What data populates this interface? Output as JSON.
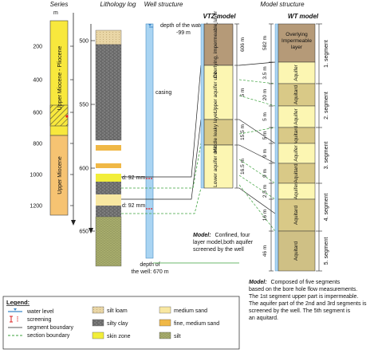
{
  "headers": {
    "series": "Series",
    "lithology": "Lithology log",
    "well": "Well structure",
    "model_structure": "Model structure",
    "vtz": "VTZ model",
    "wt": "WT model"
  },
  "series_axis": {
    "unit": "m",
    "ticks": [
      "200",
      "400",
      "600",
      "800",
      "1000",
      "1200"
    ],
    "upper_unit": "Upper Miocene - Pliocene",
    "lower_unit": "Upper Miocene"
  },
  "litho_axis": {
    "ticks": [
      "500",
      "550",
      "600",
      "650"
    ]
  },
  "well": {
    "water_level_label": "depth of the water level:",
    "water_level_value": "-99 m",
    "casing_label": "casing",
    "diam_1": "d: 92 mm",
    "diam_2": "d: 92 mm",
    "depth_label": "depth of",
    "depth_value": "the well: 670 m"
  },
  "vtz_layers": [
    {
      "label": "Overlying, impermeable layer",
      "thickness": "606 m"
    },
    {
      "label": "Upper aquifer unit",
      "thickness": "5 m"
    },
    {
      "label": "Middle leaky layer",
      "thickness": "15.5 m"
    },
    {
      "label": "Lower aquifer unit",
      "thickness": "16.5 m"
    }
  ],
  "wt_layers": [
    {
      "label": "Overlying Impermeable layer",
      "thickness": "582 m"
    },
    {
      "label": "Aquifer",
      "thickness": "3.5 m"
    },
    {
      "label": "Aquitard",
      "thickness": "20 m"
    },
    {
      "label": "Aquifer",
      "thickness": "5 m"
    },
    {
      "label": "Aquitard",
      "thickness": "5 m"
    },
    {
      "label": "Aquifer",
      "thickness": "9 m"
    },
    {
      "label": "Aquitard",
      "thickness": "9 m"
    },
    {
      "label": "Aquifer",
      "thickness": "2.5 m"
    },
    {
      "label": "Aquitard",
      "thickness": "16 m"
    },
    {
      "label": "Aquitard",
      "thickness": "46 m"
    }
  ],
  "segments": [
    "1. segment",
    "2. segment",
    "3. segment",
    "4. segment",
    "5. segment"
  ],
  "vtz_note": {
    "title": "Model:",
    "lines": [
      "Confined, four",
      "layer model,both aquifer",
      "screened by the well"
    ]
  },
  "wt_note": {
    "title": "Model:",
    "lines": [
      "Composed of five segments",
      "based on the bore hole flow measurements.",
      "The 1st segment upper part is impermeable.",
      "The aquifer part of the 2nd and 3rd segments is",
      "screened by the well. The 5th segment is",
      "an aquitard."
    ]
  },
  "legend": {
    "title": "Legend:",
    "items": [
      {
        "label": "water level"
      },
      {
        "label": "screening"
      },
      {
        "label": "segment boundary"
      },
      {
        "label": "section boundary"
      }
    ],
    "materials": [
      {
        "label": "silt loam",
        "color": "#e7d3a2"
      },
      {
        "label": "silty clay",
        "color": "#7c7c7c"
      },
      {
        "label": "skin zone",
        "color": "#f2ee3a"
      },
      {
        "label": "medium sand",
        "color": "#f8e7a1"
      },
      {
        "label": "fine, medium sand",
        "color": "#f0b846"
      },
      {
        "label": "silt",
        "color": "#a8ad6d"
      }
    ]
  },
  "colors": {
    "series_upper": "#f8e83d",
    "series_lower": "#f6c372",
    "overlying": "#b59a78",
    "aquifer": "#fcf6b2",
    "aquitard": "#d9c987",
    "aquitard_bottom": "#cfc085",
    "well": "#a9d4f2",
    "green_line": "#3ea33e"
  }
}
